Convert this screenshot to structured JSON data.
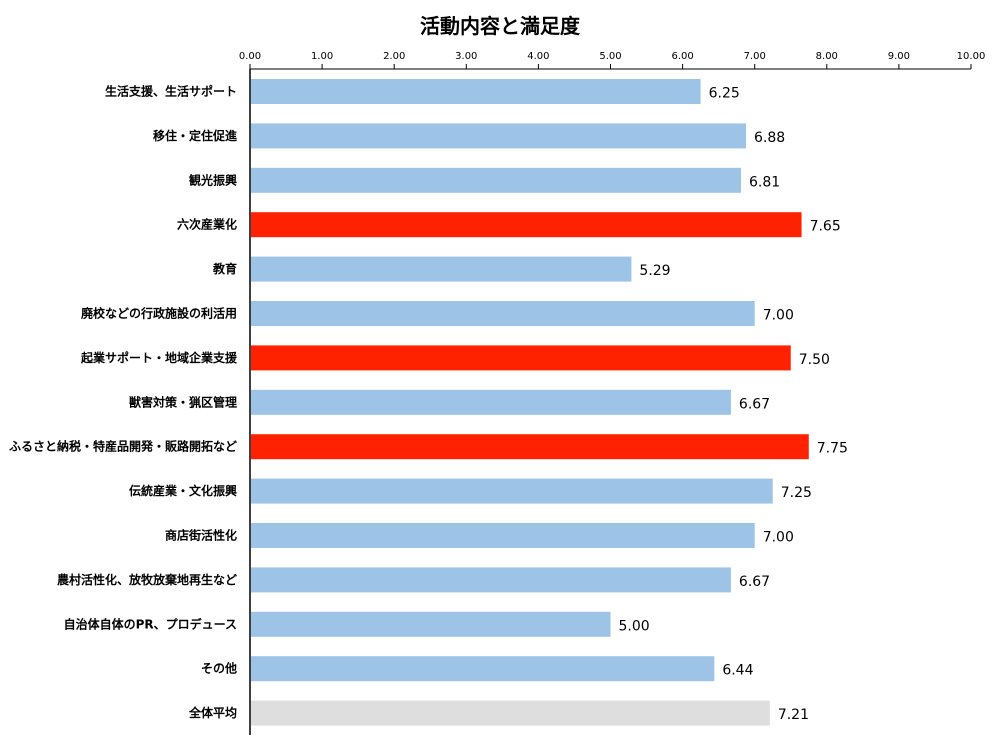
{
  "chart_data": {
    "type": "bar",
    "orientation": "horizontal",
    "title": "活動内容と満足度",
    "xlim": [
      0,
      10
    ],
    "x_ticks": [
      "0.00",
      "1.00",
      "2.00",
      "3.00",
      "4.00",
      "5.00",
      "6.00",
      "7.00",
      "8.00",
      "9.00",
      "10.00"
    ],
    "x_axis_position": "top",
    "grid": false,
    "categories": [
      "生活支援、生活サポート",
      "移住・定住促進",
      "観光振興",
      "六次産業化",
      "教育",
      "廃校などの行政施設の利活用",
      "起業サポート・地域企業支援",
      "獣害対策・猟区管理",
      "ふるさと納税・特産品開発・販路開拓など",
      "伝統産業・文化振興",
      "商店街活性化",
      "農村活性化、放牧放棄地再生など",
      "自治体自体のPR、プロデュース",
      "その他",
      "全体平均"
    ],
    "values": [
      6.25,
      6.88,
      6.81,
      7.65,
      5.29,
      7.0,
      7.5,
      6.67,
      7.75,
      7.25,
      7.0,
      6.67,
      5.0,
      6.44,
      7.21
    ],
    "value_labels": [
      "6.25",
      "6.88",
      "6.81",
      "7.65",
      "5.29",
      "7.00",
      "7.50",
      "6.67",
      "7.75",
      "7.25",
      "7.00",
      "6.67",
      "5.00",
      "6.44",
      "7.21"
    ],
    "highlight": [
      "normal",
      "normal",
      "normal",
      "top",
      "normal",
      "normal",
      "top",
      "normal",
      "top",
      "normal",
      "normal",
      "normal",
      "normal",
      "normal",
      "average"
    ],
    "colors": {
      "normal": "#9dc3e6",
      "top": "#ff2200",
      "average": "#dedede",
      "top_label": "#e00000",
      "label": "#000000"
    }
  }
}
